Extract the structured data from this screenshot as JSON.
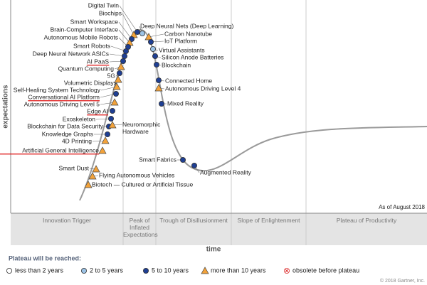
{
  "axes": {
    "y_label": "expectations",
    "x_label": "time"
  },
  "date_note": "As of August 2018",
  "phases": [
    "Innovation Trigger",
    "Peak of Inflated Expectations",
    "Trough of Disillusionment",
    "Slope of Enlightenment",
    "Plateau of Productivity"
  ],
  "legend": {
    "title": "Plateau will be reached:",
    "items": [
      {
        "label": "less than 2 years",
        "marker": "white-circle"
      },
      {
        "label": "2 to 5 years",
        "marker": "light-circle"
      },
      {
        "label": "5 to 10 years",
        "marker": "dark-circle"
      },
      {
        "label": "more than 10 years",
        "marker": "triangle"
      },
      {
        "label": "obsolete before plateau",
        "marker": "obsolete"
      }
    ]
  },
  "copyright": "© 2018 Gartner, Inc.",
  "technologies": [
    {
      "label": "Digital Twin",
      "marker": "dark-circle"
    },
    {
      "label": "Biochips",
      "marker": "triangle"
    },
    {
      "label": "Smart Workspace",
      "marker": "dark-circle"
    },
    {
      "label": "Brain-Computer Interface",
      "marker": "triangle"
    },
    {
      "label": "Autonomous Mobile Robots",
      "marker": "dark-circle"
    },
    {
      "label": "Smart Robots",
      "marker": "dark-circle"
    },
    {
      "label": "Deep Neural Network ASICs",
      "marker": "dark-circle"
    },
    {
      "label": "AI PaaS",
      "marker": "dark-circle",
      "highlighted": true
    },
    {
      "label": "Quantum Computing",
      "marker": "triangle"
    },
    {
      "label": "5G",
      "marker": "dark-circle"
    },
    {
      "label": "Volumetric Displays",
      "marker": "triangle"
    },
    {
      "label": "Self-Healing System Technology",
      "marker": "triangle"
    },
    {
      "label": "Conversational AI Platform",
      "marker": "dark-circle",
      "highlighted": true
    },
    {
      "label": "Autonomous Driving Level 5",
      "marker": "triangle"
    },
    {
      "label": "Edge AI",
      "marker": "dark-circle",
      "highlighted": true
    },
    {
      "label": "Exoskeleton",
      "marker": "dark-circle"
    },
    {
      "label": "Blockchain for Data Security",
      "marker": "dark-circle"
    },
    {
      "label": "Knowledge Graphs",
      "marker": "dark-circle"
    },
    {
      "label": "4D Printing",
      "marker": "triangle"
    },
    {
      "label": "Artificial General Intelligence",
      "marker": "triangle",
      "highlighted": true
    },
    {
      "label": "Smart Dust",
      "marker": "triangle"
    },
    {
      "label": "Flying Autonomous Vehicles",
      "marker": "triangle"
    },
    {
      "label": "Biotech — Cultured or Artificial Tissue",
      "marker": "triangle"
    },
    {
      "label": "Neuromorphic Hardware",
      "marker": "triangle"
    },
    {
      "label": "Deep Neural Nets (Deep Learning)",
      "marker": "light-circle"
    },
    {
      "label": "Carbon Nanotube",
      "marker": "triangle"
    },
    {
      "label": "IoT Platform",
      "marker": "dark-circle"
    },
    {
      "label": "Virtual Assistants",
      "marker": "light-circle"
    },
    {
      "label": "Silicon Anode Batteries",
      "marker": "dark-circle"
    },
    {
      "label": "Blockchain",
      "marker": "dark-circle"
    },
    {
      "label": "Connected Home",
      "marker": "dark-circle"
    },
    {
      "label": "Autonomous Driving Level 4",
      "marker": "triangle"
    },
    {
      "label": "Mixed Reality",
      "marker": "dark-circle"
    },
    {
      "label": "Smart Fabrics",
      "marker": "dark-circle"
    },
    {
      "label": "Augmented Reality",
      "marker": "dark-circle"
    }
  ]
}
